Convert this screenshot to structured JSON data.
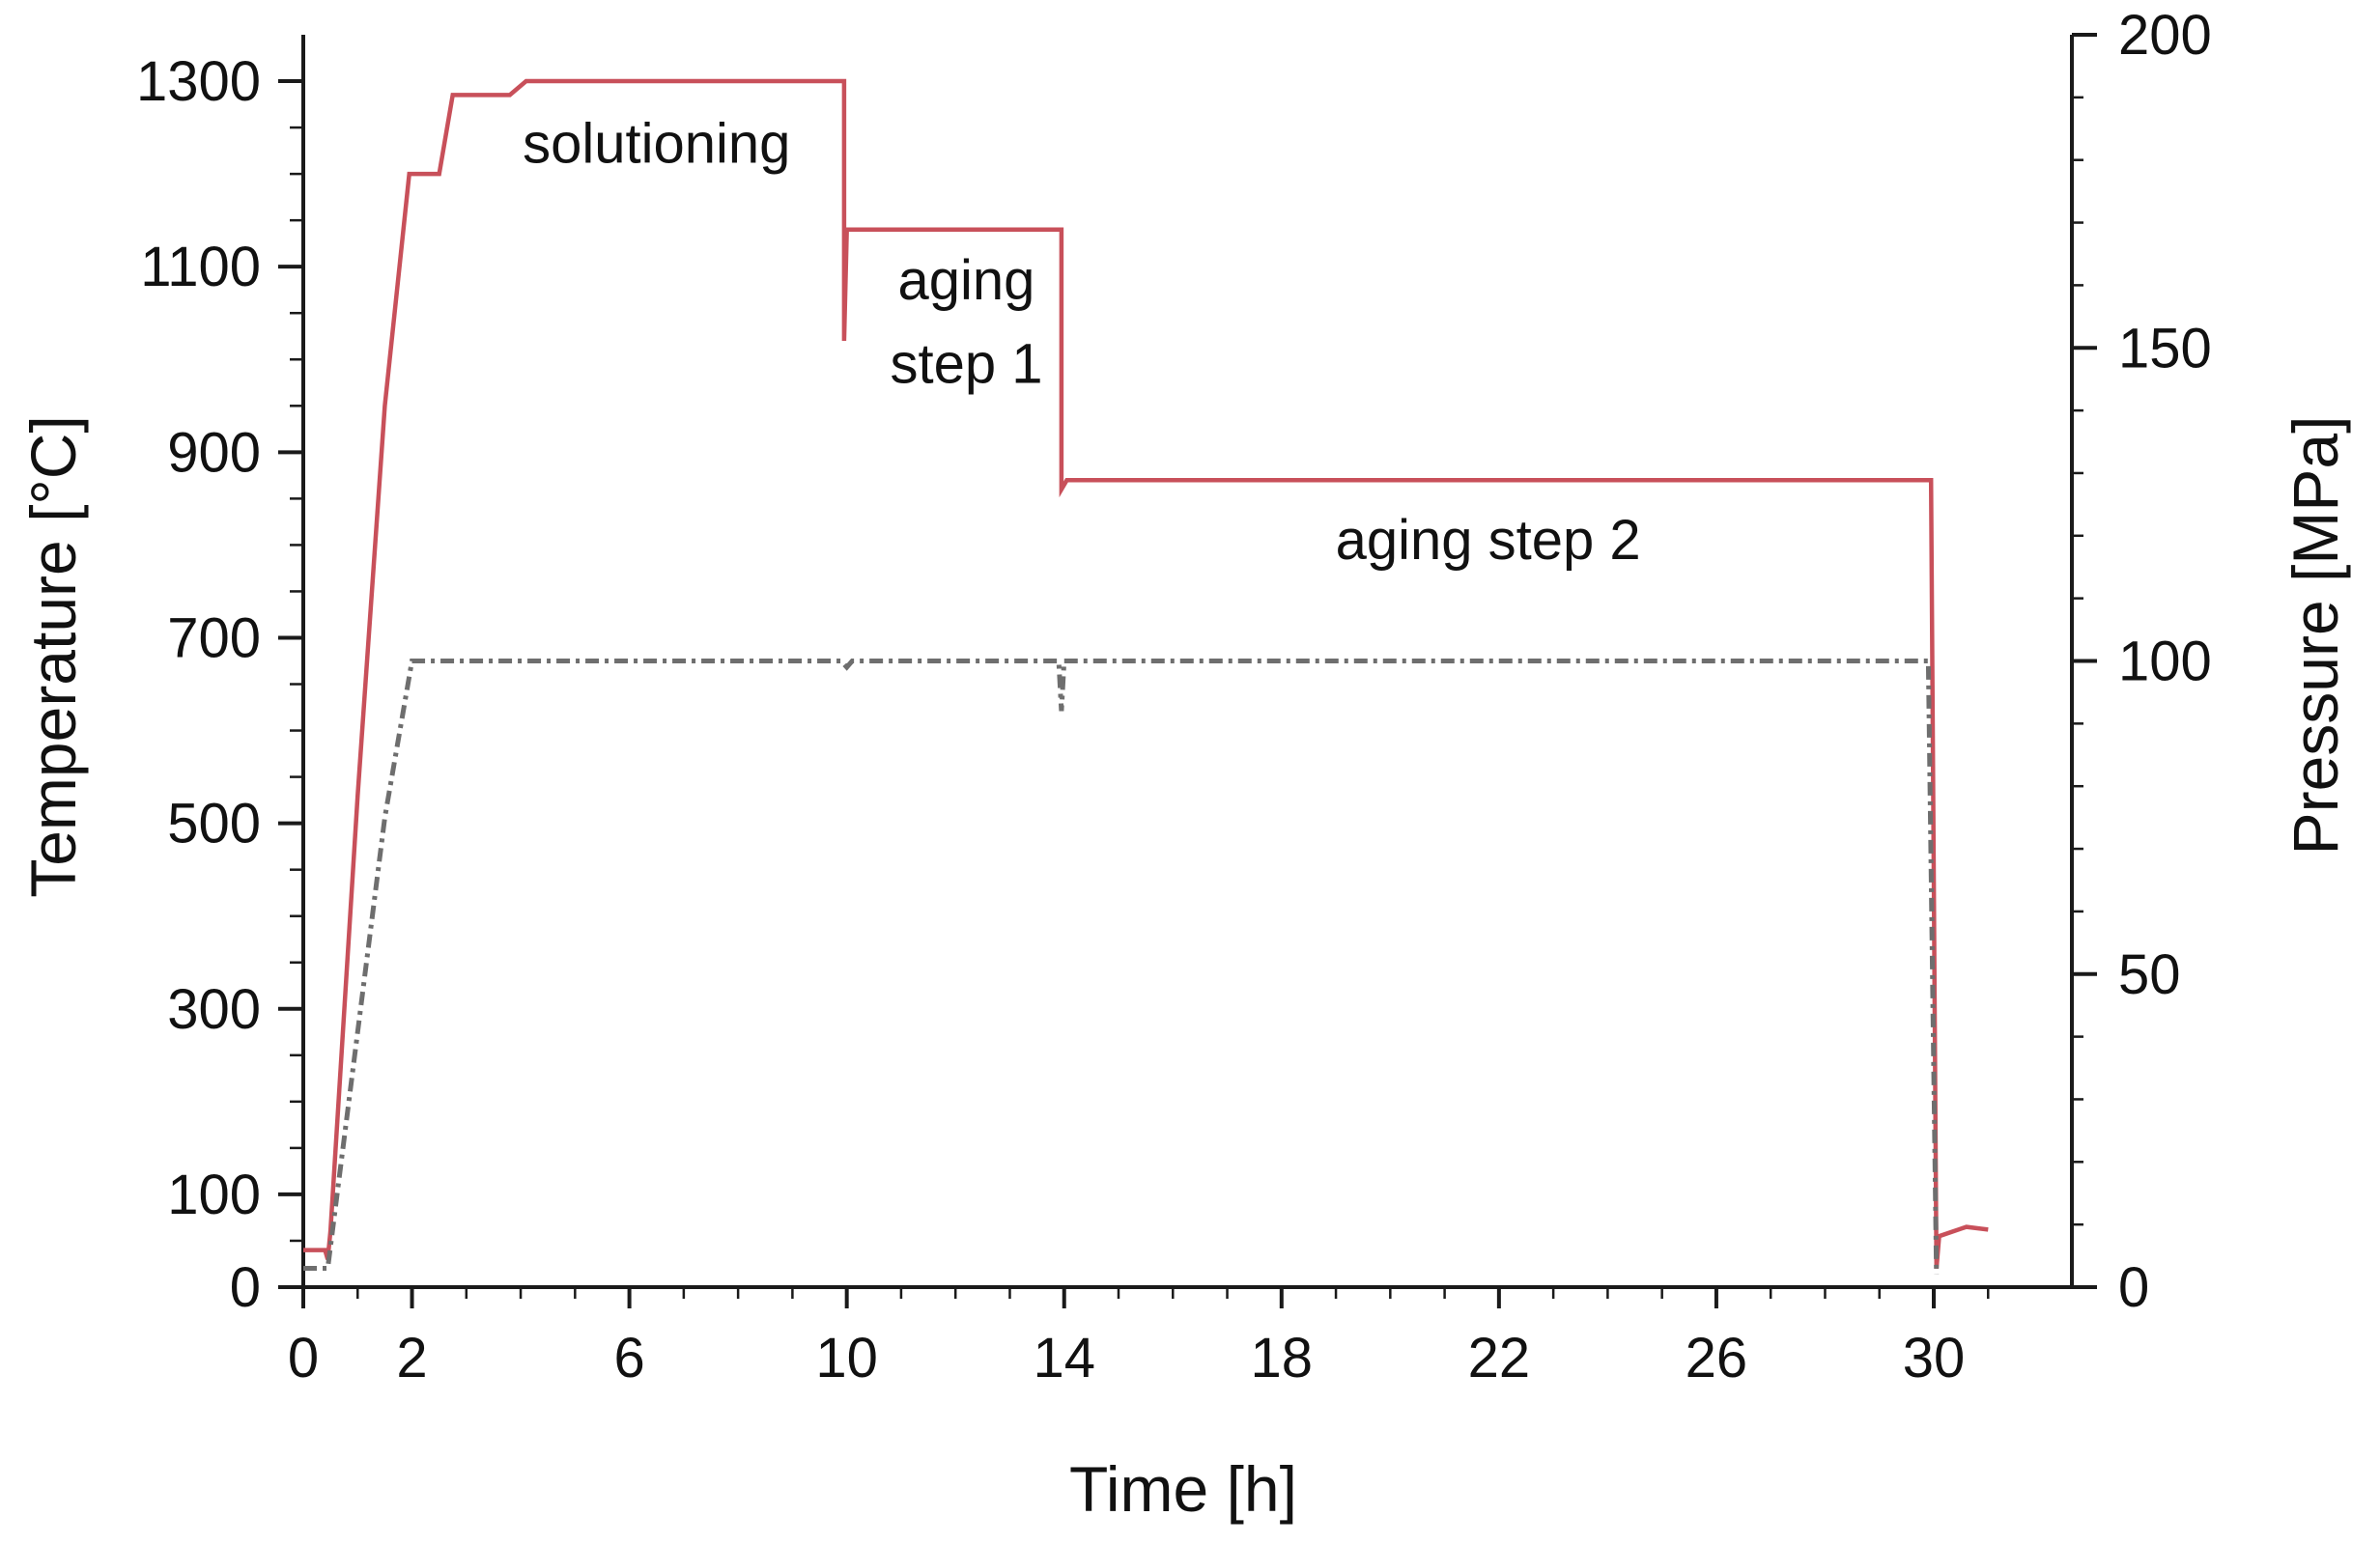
{
  "chart_data": {
    "type": "line",
    "title": "",
    "xlabel": "Time [h]",
    "ylabel_left": "Temperature [°C]",
    "ylabel_right": "Pressure [MPa]",
    "xlim": [
      0,
      31
    ],
    "ylim_left": [
      0,
      1350
    ],
    "ylim_right": [
      0,
      200
    ],
    "x_ticks": [
      "0",
      "2",
      "6",
      "10",
      "14",
      "18",
      "22",
      "26",
      "30"
    ],
    "x_tick_values": [
      0,
      2,
      6,
      10,
      14,
      18,
      22,
      26,
      30
    ],
    "y_left_ticks": [
      "0",
      "100",
      "300",
      "500",
      "700",
      "900",
      "1100",
      "1300"
    ],
    "y_left_tick_values": [
      0,
      100,
      300,
      500,
      700,
      900,
      1100,
      1300
    ],
    "y_right_ticks": [
      "0",
      "50",
      "100",
      "150",
      "200"
    ],
    "y_right_tick_values": [
      0,
      50,
      100,
      150,
      200
    ],
    "grid": false,
    "series": [
      {
        "axis": "left",
        "color": "#c8505a",
        "style": "solid",
        "points": [
          [
            0,
            40
          ],
          [
            0.4,
            40
          ],
          [
            0.45,
            30
          ],
          [
            0.5,
            60
          ],
          [
            1.0,
            530
          ],
          [
            1.5,
            950
          ],
          [
            1.95,
            1200
          ],
          [
            2.5,
            1200
          ],
          [
            2.75,
            1285
          ],
          [
            3.8,
            1285
          ],
          [
            4.1,
            1300
          ],
          [
            9.95,
            1300
          ],
          [
            9.95,
            1020
          ],
          [
            10.0,
            1140
          ],
          [
            13.95,
            1140
          ],
          [
            13.95,
            860
          ],
          [
            14.05,
            870
          ],
          [
            29.95,
            870
          ],
          [
            30.05,
            20
          ],
          [
            30.1,
            55
          ],
          [
            30.6,
            65
          ],
          [
            31.0,
            62
          ]
        ]
      },
      {
        "axis": "right",
        "color": "#6e6e6e",
        "style": "dashdot",
        "points": [
          [
            0,
            3
          ],
          [
            0.45,
            3
          ],
          [
            1.5,
            75
          ],
          [
            2.0,
            100
          ],
          [
            9.9,
            100
          ],
          [
            10.0,
            99
          ],
          [
            10.1,
            100
          ],
          [
            13.9,
            100
          ],
          [
            13.95,
            92
          ],
          [
            14.0,
            100
          ],
          [
            29.9,
            100
          ],
          [
            30.05,
            2
          ]
        ]
      }
    ],
    "annotations": [
      {
        "text": "solutioning",
        "x": 6.5,
        "y": 1212,
        "axis": "left"
      },
      {
        "text": "aging",
        "x": 12.2,
        "y": 1065,
        "axis": "left"
      },
      {
        "text": "step 1",
        "x": 12.2,
        "y": 975,
        "axis": "left"
      },
      {
        "text": "aging step 2",
        "x": 21.8,
        "y": 785,
        "axis": "left"
      }
    ]
  }
}
